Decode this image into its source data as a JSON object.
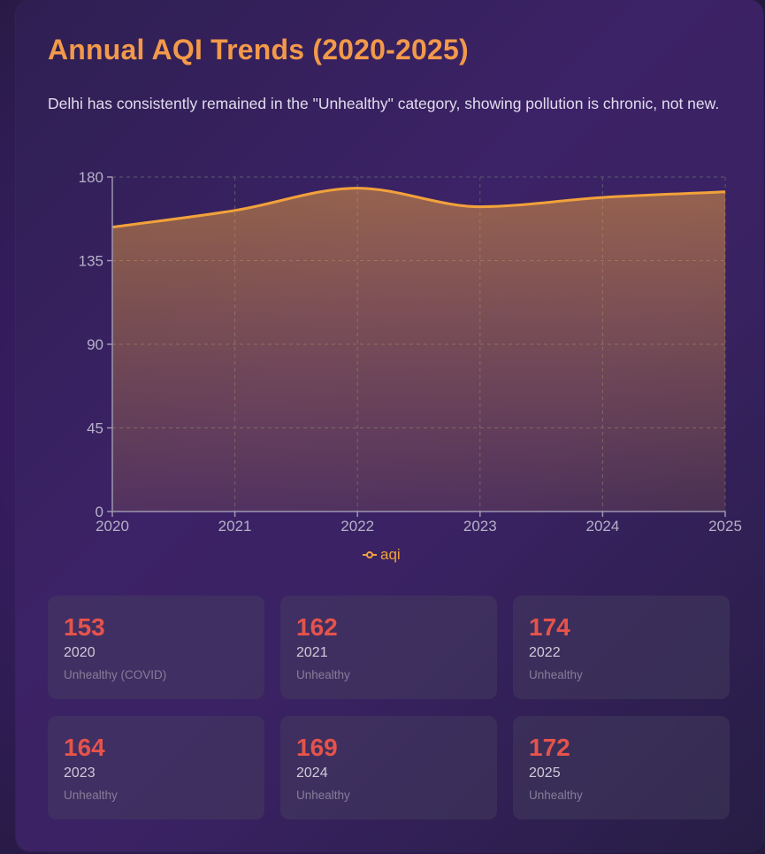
{
  "title": "Annual AQI Trends (2020-2025)",
  "description": "Delhi has consistently remained in the \"Unhealthy\" category, showing pollution is chronic, not new.",
  "legend": {
    "label": "aqi"
  },
  "colors": {
    "title": "#f2994a",
    "line": "#f2a23a",
    "value": "#e5534b"
  },
  "chart_data": {
    "type": "area",
    "title": "",
    "xlabel": "",
    "ylabel": "",
    "categories": [
      "2020",
      "2021",
      "2022",
      "2023",
      "2024",
      "2025"
    ],
    "series": [
      {
        "name": "aqi",
        "values": [
          153,
          162,
          174,
          164,
          169,
          172
        ]
      }
    ],
    "ylim": [
      0,
      180
    ],
    "yticks": [
      0,
      45,
      90,
      135,
      180
    ],
    "grid": true,
    "legend_position": "bottom"
  },
  "cards": [
    {
      "value": "153",
      "year": "2020",
      "status": "Unhealthy (COVID)"
    },
    {
      "value": "162",
      "year": "2021",
      "status": "Unhealthy"
    },
    {
      "value": "174",
      "year": "2022",
      "status": "Unhealthy"
    },
    {
      "value": "164",
      "year": "2023",
      "status": "Unhealthy"
    },
    {
      "value": "169",
      "year": "2024",
      "status": "Unhealthy"
    },
    {
      "value": "172",
      "year": "2025",
      "status": "Unhealthy"
    }
  ]
}
